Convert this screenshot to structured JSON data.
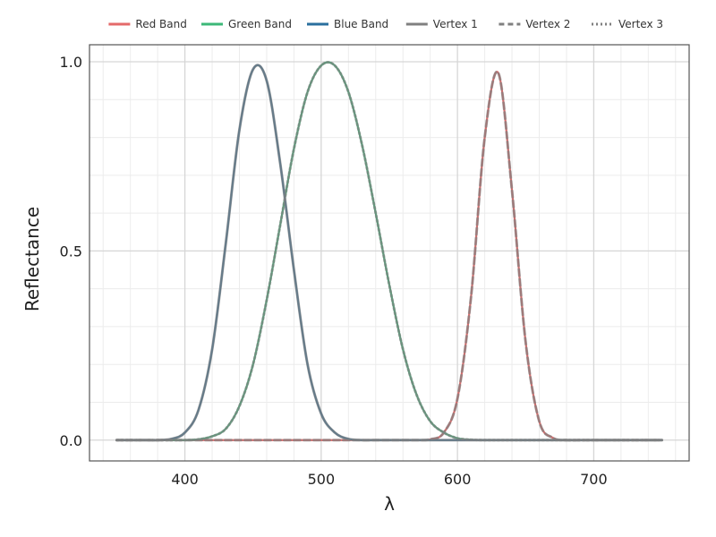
{
  "chart_data": {
    "type": "line",
    "title": "",
    "xlabel": "λ",
    "ylabel": "Reflectance",
    "xlim": [
      330,
      770
    ],
    "ylim": [
      -0.055,
      1.045
    ],
    "x_ticks": [
      400,
      500,
      600,
      700
    ],
    "x_tick_labels": [
      "400",
      "500",
      "600",
      "700"
    ],
    "y_ticks": [
      0.0,
      0.5,
      1.0
    ],
    "y_tick_labels": [
      "0.0",
      "0.5",
      "1.0"
    ],
    "grid": true,
    "legend_position": "top",
    "legend": [
      {
        "label": "Red Band",
        "color": "#e46a6a",
        "style": "solid"
      },
      {
        "label": "Green Band",
        "color": "#3cb878",
        "style": "solid"
      },
      {
        "label": "Blue Band",
        "color": "#2a6f9e",
        "style": "solid"
      },
      {
        "label": "Vertex 1",
        "color": "#808080",
        "style": "solid"
      },
      {
        "label": "Vertex 2",
        "color": "#808080",
        "style": "dashed"
      },
      {
        "label": "Vertex 3",
        "color": "#808080",
        "style": "dotted"
      }
    ],
    "x": [
      350,
      360,
      370,
      380,
      390,
      400,
      410,
      420,
      430,
      440,
      450,
      460,
      470,
      480,
      490,
      500,
      510,
      520,
      530,
      540,
      550,
      560,
      570,
      580,
      590,
      600,
      610,
      620,
      630,
      640,
      650,
      660,
      670,
      680,
      690,
      700,
      710,
      720,
      730,
      740,
      750
    ],
    "series": [
      {
        "name": "Red Band",
        "color": "#e46a6a",
        "style": "solid",
        "values": [
          0,
          0,
          0,
          0,
          0,
          0,
          0,
          0,
          0,
          0,
          0,
          0,
          0,
          0,
          0,
          0,
          0,
          0,
          0,
          0,
          0,
          0,
          0,
          0.002,
          0.02,
          0.11,
          0.38,
          0.8,
          0.97,
          0.66,
          0.26,
          0.05,
          0.006,
          0,
          0,
          0,
          0,
          0,
          0,
          0,
          0
        ]
      },
      {
        "name": "Green Band",
        "color": "#3cb878",
        "style": "solid",
        "values": [
          0,
          0,
          0,
          0,
          0,
          0,
          0.002,
          0.01,
          0.03,
          0.09,
          0.2,
          0.37,
          0.57,
          0.77,
          0.92,
          0.99,
          0.99,
          0.92,
          0.78,
          0.6,
          0.41,
          0.24,
          0.12,
          0.05,
          0.02,
          0.005,
          0.001,
          0,
          0,
          0,
          0,
          0,
          0,
          0,
          0,
          0,
          0,
          0,
          0,
          0,
          0
        ]
      },
      {
        "name": "Blue Band",
        "color": "#2a6f9e",
        "style": "solid",
        "values": [
          0,
          0,
          0,
          0,
          0.003,
          0.02,
          0.08,
          0.24,
          0.52,
          0.82,
          0.98,
          0.95,
          0.73,
          0.45,
          0.2,
          0.07,
          0.02,
          0.003,
          0,
          0,
          0,
          0,
          0,
          0,
          0,
          0,
          0,
          0,
          0,
          0,
          0,
          0,
          0,
          0,
          0,
          0,
          0,
          0,
          0,
          0,
          0
        ]
      },
      {
        "name": "Vertex 1",
        "color": "#808080",
        "style": "solid",
        "values": [
          0,
          0,
          0,
          0,
          0.003,
          0.02,
          0.08,
          0.24,
          0.52,
          0.82,
          0.98,
          0.95,
          0.73,
          0.45,
          0.2,
          0.07,
          0.02,
          0.003,
          0,
          0,
          0,
          0,
          0,
          0,
          0,
          0,
          0,
          0,
          0,
          0,
          0,
          0,
          0,
          0,
          0,
          0,
          0,
          0,
          0,
          0,
          0
        ]
      },
      {
        "name": "Vertex 2",
        "color": "#808080",
        "style": "dashed",
        "values": [
          0,
          0,
          0,
          0,
          0,
          0,
          0,
          0,
          0,
          0,
          0,
          0,
          0,
          0,
          0,
          0,
          0,
          0,
          0,
          0,
          0,
          0,
          0,
          0.002,
          0.02,
          0.11,
          0.38,
          0.8,
          0.97,
          0.66,
          0.26,
          0.05,
          0.006,
          0,
          0,
          0,
          0,
          0,
          0,
          0,
          0
        ]
      },
      {
        "name": "Vertex 3",
        "color": "#808080",
        "style": "dotted",
        "values": [
          0,
          0,
          0,
          0,
          0,
          0,
          0.002,
          0.01,
          0.03,
          0.09,
          0.2,
          0.37,
          0.57,
          0.77,
          0.92,
          0.99,
          0.99,
          0.92,
          0.78,
          0.6,
          0.41,
          0.24,
          0.12,
          0.05,
          0.02,
          0.005,
          0.001,
          0,
          0,
          0,
          0,
          0,
          0,
          0,
          0,
          0,
          0,
          0,
          0,
          0,
          0
        ]
      }
    ]
  }
}
